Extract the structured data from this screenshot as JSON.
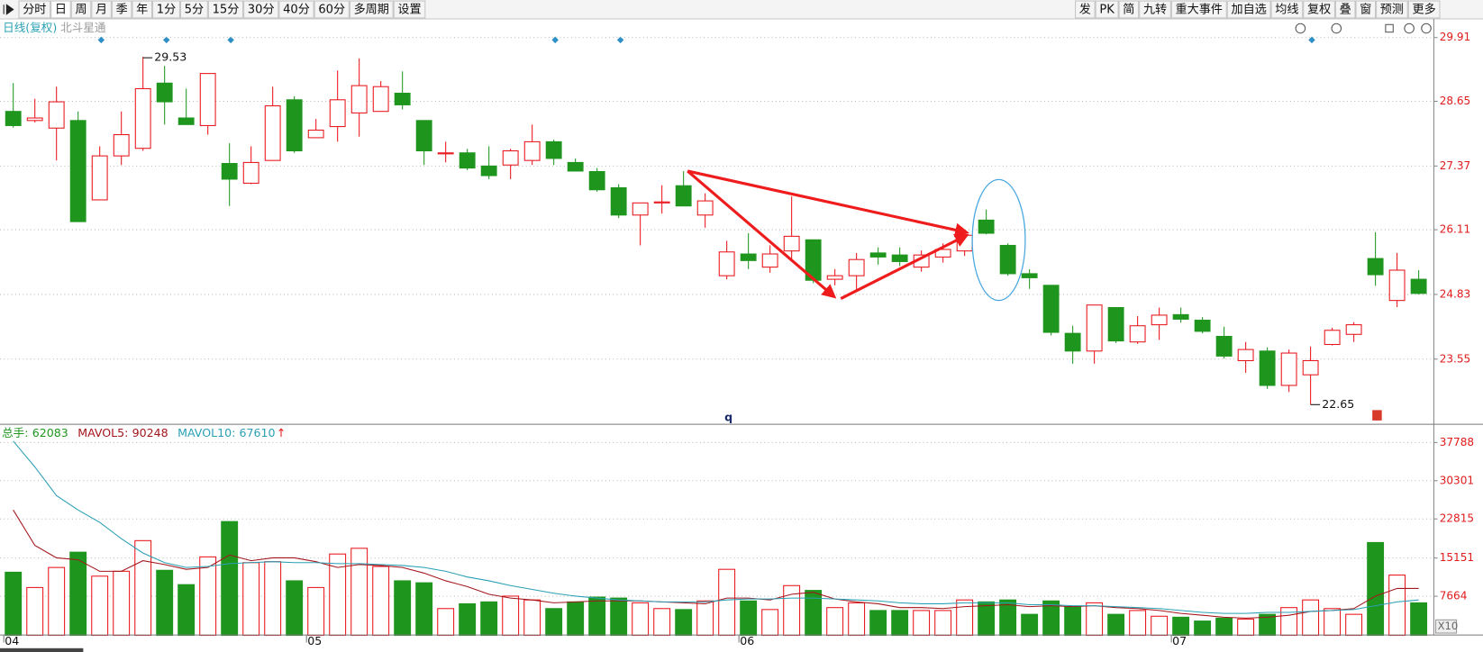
{
  "toolbar": {
    "left": [
      "分时",
      "日",
      "周",
      "月",
      "季",
      "年",
      "1分",
      "5分",
      "15分",
      "30分",
      "40分",
      "60分",
      "多周期",
      "设置"
    ],
    "selected_index": 1,
    "right": [
      "发",
      "PK",
      "简",
      "九转",
      "重大事件",
      "加自选",
      "均线",
      "复权",
      "叠",
      "窗",
      "预测",
      "更多"
    ]
  },
  "chart_data": [
    {
      "type": "candlestick",
      "title": "日线(复权)",
      "subtitle": "北斗星通",
      "categories": [
        "04",
        null,
        null,
        null,
        null,
        null,
        null,
        null,
        null,
        null,
        null,
        null,
        null,
        null,
        "05",
        null,
        null,
        null,
        null,
        null,
        null,
        null,
        null,
        null,
        null,
        null,
        null,
        null,
        null,
        null,
        null,
        null,
        null,
        null,
        "06",
        null,
        null,
        null,
        null,
        null,
        null,
        null,
        null,
        null,
        null,
        null,
        null,
        null,
        null,
        null,
        null,
        null,
        null,
        null,
        "07",
        null,
        null,
        null,
        null,
        null,
        null,
        null,
        null,
        null,
        null,
        null
      ],
      "open": [
        28.45,
        28.27,
        28.12,
        28.27,
        26.7,
        27.57,
        27.72,
        29.01,
        28.32,
        28.17,
        27.42,
        27.03,
        27.48,
        28.68,
        27.93,
        28.15,
        28.42,
        28.45,
        28.81,
        28.27,
        27.61,
        27.63,
        27.37,
        27.39,
        27.48,
        27.85,
        27.44,
        27.26,
        26.94,
        26.4,
        26.64,
        26.98,
        26.4,
        25.2,
        25.63,
        25.37,
        25.69,
        25.91,
        25.13,
        25.2,
        25.65,
        25.61,
        25.37,
        25.57,
        25.69,
        26.3,
        25.8,
        25.24,
        25.01,
        24.06,
        23.71,
        24.57,
        23.89,
        24.23,
        24.43,
        24.32,
        24.0,
        23.52,
        23.71,
        23.03,
        23.24,
        23.84,
        24.04,
        25.54,
        24.71,
        25.13
      ],
      "high": [
        29.01,
        28.7,
        28.94,
        28.45,
        27.76,
        28.45,
        29.53,
        29.35,
        28.9,
        29.2,
        27.82,
        27.76,
        28.94,
        28.75,
        28.3,
        29.26,
        29.5,
        29.05,
        29.24,
        28.27,
        27.85,
        27.71,
        27.76,
        27.71,
        28.19,
        27.89,
        27.52,
        27.33,
        27.01,
        26.64,
        26.99,
        27.27,
        26.83,
        25.89,
        26.04,
        25.8,
        26.77,
        25.91,
        25.33,
        25.65,
        25.76,
        25.76,
        25.7,
        25.84,
        26.0,
        26.51,
        25.84,
        25.33,
        25.01,
        24.21,
        24.62,
        24.57,
        24.4,
        24.57,
        24.57,
        24.38,
        24.19,
        23.89,
        23.78,
        23.74,
        23.8,
        24.17,
        24.28,
        26.06,
        25.65,
        25.31
      ],
      "low": [
        28.13,
        28.23,
        27.48,
        26.27,
        26.7,
        27.39,
        27.67,
        28.19,
        28.19,
        27.99,
        26.58,
        27.01,
        27.48,
        27.63,
        27.93,
        27.85,
        27.95,
        28.45,
        28.49,
        27.39,
        27.44,
        27.29,
        27.11,
        27.11,
        27.39,
        27.39,
        27.26,
        26.86,
        26.34,
        25.8,
        26.43,
        26.58,
        26.15,
        25.13,
        25.33,
        25.26,
        25.52,
        25.05,
        25.01,
        24.9,
        25.42,
        25.39,
        25.28,
        25.46,
        25.59,
        26.02,
        25.2,
        24.94,
        24.02,
        23.46,
        23.46,
        23.87,
        23.85,
        23.93,
        24.27,
        24.06,
        23.56,
        23.28,
        22.96,
        22.9,
        22.65,
        23.82,
        23.89,
        25.0,
        24.58,
        24.83
      ],
      "close": [
        28.17,
        28.32,
        28.64,
        26.27,
        27.57,
        27.99,
        28.9,
        28.64,
        28.19,
        29.2,
        27.11,
        27.44,
        28.56,
        27.67,
        28.08,
        28.68,
        28.96,
        28.94,
        28.58,
        27.67,
        27.63,
        27.33,
        27.18,
        27.67,
        27.85,
        27.52,
        27.27,
        26.9,
        26.4,
        26.64,
        26.66,
        26.58,
        26.68,
        25.67,
        25.5,
        25.63,
        25.98,
        25.11,
        25.2,
        25.52,
        25.57,
        25.48,
        25.61,
        25.72,
        26.0,
        26.04,
        25.24,
        25.16,
        24.08,
        23.71,
        24.62,
        23.91,
        24.21,
        24.42,
        24.34,
        24.1,
        23.61,
        23.74,
        23.03,
        23.67,
        23.52,
        24.12,
        24.23,
        25.22,
        25.31,
        24.85
      ],
      "up_color": "#e8141b",
      "down_color": "#1e961e",
      "ylim": [
        22.28,
        30.28
      ],
      "yticks": [
        23.55,
        24.83,
        26.11,
        27.37,
        28.65,
        29.91
      ],
      "grid": true,
      "max_index": 6,
      "min_index": 60,
      "annotations": [
        "q"
      ]
    },
    {
      "type": "volume",
      "unit_label": "X10",
      "trend_mark": "↑",
      "series": [
        {
          "name": "总手:",
          "color": "#1e961e",
          "legend_value": 62083,
          "values": [
            12375,
            9375,
            13300,
            16300,
            11600,
            12560,
            18560,
            12750,
            9940,
            15375,
            22300,
            14250,
            14440,
            10690,
            9375,
            15940,
            17060,
            13500,
            10690,
            10300,
            5250,
            6190,
            6560,
            7690,
            6940,
            5250,
            6560,
            7500,
            7310,
            6375,
            5250,
            5060,
            6750,
            12940,
            6750,
            5060,
            9750,
            8810,
            5440,
            6375,
            4875,
            4875,
            4875,
            4875,
            6940,
            6560,
            6940,
            4125,
            6750,
            5625,
            6375,
            4125,
            4875,
            3750,
            3560,
            2810,
            3375,
            3190,
            4125,
            5440,
            6940,
            5250,
            4125,
            18190,
            11810,
            6375
          ]
        },
        {
          "name": "MAVOL5:",
          "color": "#a3161c",
          "legend_value": 90248,
          "values": [
            24560,
            17630,
            15190,
            14810,
            12560,
            12560,
            14630,
            13880,
            12940,
            13310,
            15750,
            14630,
            15190,
            15190,
            14440,
            13310,
            13880,
            13690,
            13310,
            12190,
            10690,
            9560,
            8060,
            7310,
            6940,
            6380,
            6560,
            6750,
            6750,
            6750,
            6560,
            6380,
            6190,
            7310,
            7310,
            6940,
            8060,
            8440,
            7130,
            6560,
            6190,
            5440,
            5440,
            5250,
            5630,
            5810,
            6000,
            5630,
            5810,
            5630,
            5810,
            5440,
            5250,
            4880,
            4310,
            3940,
            3560,
            3380,
            3560,
            3940,
            4690,
            4880,
            5250,
            7690,
            9190,
            9190
          ]
        },
        {
          "name": "MAVOL10:",
          "color": "#2aa0b4",
          "legend_value": 67610,
          "values": [
            38060,
            33000,
            27380,
            24560,
            22130,
            18940,
            16130,
            14250,
            13310,
            13500,
            14060,
            14250,
            14440,
            14250,
            14250,
            14060,
            14060,
            13880,
            13690,
            13310,
            12560,
            11440,
            10690,
            9750,
            9000,
            8250,
            7690,
            7310,
            6940,
            6750,
            6560,
            6560,
            6560,
            6940,
            7130,
            7130,
            7310,
            7310,
            7130,
            6940,
            6750,
            6380,
            6190,
            6190,
            6380,
            6380,
            6380,
            6000,
            6000,
            5810,
            5810,
            5630,
            5440,
            5250,
            4880,
            4500,
            4310,
            4310,
            4500,
            4500,
            4690,
            4880,
            5060,
            5810,
            6560,
            6940
          ]
        }
      ],
      "ylim": [
        0,
        40800
      ],
      "yticks": [
        7664,
        15151,
        22815,
        30301,
        37788
      ],
      "grid": true
    }
  ]
}
